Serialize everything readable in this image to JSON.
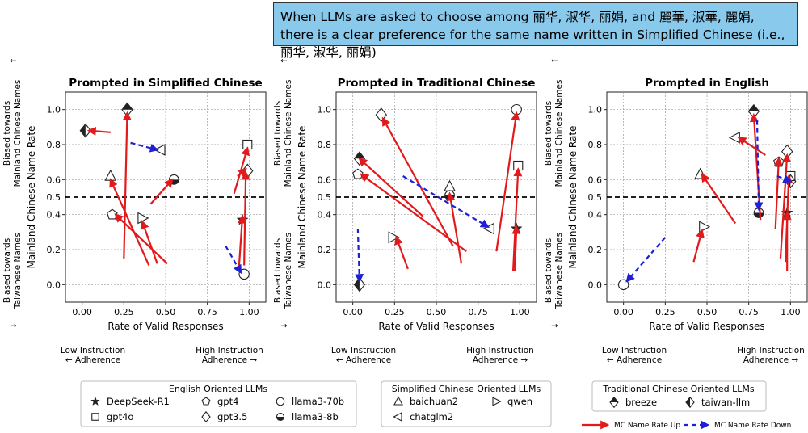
{
  "callout": "When LLMs are asked to choose among 丽华, 淑华, 丽娟, and 麗華, 淑華, 麗娟, there is a clear preference for the same name written in Simplified Chinese (i.e.,丽华, 淑华, 丽娟)",
  "side": {
    "top_arrow": "↑",
    "top_line1": "Biased towards",
    "top_line2": "Mainland Chinese Names",
    "bottom_line1": "Biased towards",
    "bottom_line2": "Taiwanese Names",
    "bottom_arrow": "↓"
  },
  "bottom_note": {
    "low_line1": "Low Instruction",
    "low_line2": "← Adherence",
    "high_line1": "High Instruction",
    "high_line2": "Adherence →"
  },
  "colors": {
    "up": "#e31a1c",
    "down": "#1f1fd6"
  },
  "legends": {
    "english": {
      "title": "English Oriented LLMs",
      "items": [
        {
          "marker": "star",
          "label": "DeepSeek-R1"
        },
        {
          "marker": "pentagon",
          "label": "gpt4"
        },
        {
          "marker": "circle",
          "label": "llama3-70b"
        },
        {
          "marker": "square",
          "label": "gpt4o"
        },
        {
          "marker": "diamond",
          "label": "gpt3.5"
        },
        {
          "marker": "halfcircle",
          "label": "llama3-8b"
        }
      ]
    },
    "simplified": {
      "title": "Simplified Chinese Oriented LLMs",
      "items": [
        {
          "marker": "tri_up",
          "label": "baichuan2"
        },
        {
          "marker": "tri_right",
          "label": "qwen"
        },
        {
          "marker": "tri_left",
          "label": "chatglm2"
        }
      ]
    },
    "traditional": {
      "title": "Traditional Chinese Oriented LLMs",
      "items": [
        {
          "marker": "diamond_half_top",
          "label": "breeze"
        },
        {
          "marker": "diamond_half_left",
          "label": "taiwan-llm"
        }
      ]
    },
    "arrows": [
      {
        "kind": "up",
        "label": "MC Name Rate Up"
      },
      {
        "kind": "down",
        "label": "MC Name Rate Down"
      }
    ]
  },
  "chart_data": [
    {
      "type": "scatter",
      "title": "Prompted in Simplified Chinese",
      "xlabel": "Rate of Valid Responses",
      "ylabel": "Mainland Chinese Name Rate",
      "xlim": [
        -0.1,
        1.1
      ],
      "ylim": [
        -0.1,
        1.1
      ],
      "xticks": [
        "0.00",
        "0.25",
        "0.50",
        "0.75",
        "1.00"
      ],
      "yticks": [
        "0.0",
        "0.2",
        "0.4",
        "0.6",
        "0.8",
        "1.0"
      ],
      "hline": {
        "y": 0.5,
        "label": "0.5"
      },
      "grid": true,
      "points": [
        {
          "model": "taiwan-llm",
          "x": 0.02,
          "y": 0.88
        },
        {
          "model": "breeze",
          "x": 0.27,
          "y": 1.0
        },
        {
          "model": "chatglm2",
          "x": 0.47,
          "y": 0.77
        },
        {
          "model": "baichuan2",
          "x": 0.17,
          "y": 0.62
        },
        {
          "model": "llama3-8b",
          "x": 0.55,
          "y": 0.6
        },
        {
          "model": "gpt4",
          "x": 0.18,
          "y": 0.4
        },
        {
          "model": "qwen",
          "x": 0.36,
          "y": 0.38
        },
        {
          "model": "gpt4o",
          "x": 0.99,
          "y": 0.8
        },
        {
          "model": "gpt3.5",
          "x": 0.99,
          "y": 0.65
        },
        {
          "model": "DeepSeek-R1",
          "x": 0.96,
          "y": 0.37
        },
        {
          "model": "llama3-70b",
          "x": 0.97,
          "y": 0.06
        }
      ],
      "arrows": [
        {
          "kind": "up",
          "from": [
            0.17,
            0.87
          ],
          "to": [
            0.04,
            0.88
          ]
        },
        {
          "kind": "up",
          "from": [
            0.25,
            0.15
          ],
          "to": [
            0.27,
            0.98
          ]
        },
        {
          "kind": "down",
          "from": [
            0.29,
            0.81
          ],
          "to": [
            0.45,
            0.77
          ]
        },
        {
          "kind": "up",
          "from": [
            0.4,
            0.11
          ],
          "to": [
            0.17,
            0.6
          ]
        },
        {
          "kind": "up",
          "from": [
            0.41,
            0.46
          ],
          "to": [
            0.54,
            0.6
          ]
        },
        {
          "kind": "up",
          "from": [
            0.51,
            0.12
          ],
          "to": [
            0.2,
            0.4
          ]
        },
        {
          "kind": "up",
          "from": [
            0.45,
            0.12
          ],
          "to": [
            0.36,
            0.36
          ]
        },
        {
          "kind": "up",
          "from": [
            0.91,
            0.52
          ],
          "to": [
            0.99,
            0.78
          ]
        },
        {
          "kind": "up",
          "from": [
            0.93,
            0.62
          ],
          "to": [
            0.98,
            0.66
          ]
        },
        {
          "kind": "up",
          "from": [
            0.94,
            0.11
          ],
          "to": [
            0.96,
            0.39
          ]
        },
        {
          "kind": "up",
          "from": [
            0.97,
            0.11
          ],
          "to": [
            0.98,
            0.64
          ]
        },
        {
          "kind": "down",
          "from": [
            0.86,
            0.22
          ],
          "to": [
            0.95,
            0.07
          ]
        }
      ]
    },
    {
      "type": "scatter",
      "title": "Prompted in Traditional Chinese",
      "xlabel": "Rate of Valid Responses",
      "ylabel": "Mainland Chinese Name Rate",
      "xlim": [
        -0.1,
        1.1
      ],
      "ylim": [
        -0.1,
        1.1
      ],
      "xticks": [
        "0.00",
        "0.25",
        "0.50",
        "0.75",
        "1.00"
      ],
      "yticks": [
        "0.0",
        "0.2",
        "0.4",
        "0.6",
        "0.8",
        "1.0"
      ],
      "hline": {
        "y": 0.5,
        "label": "0.5"
      },
      "grid": true,
      "points": [
        {
          "model": "gpt3.5",
          "x": 0.17,
          "y": 0.97
        },
        {
          "model": "llama3-70b",
          "x": 0.98,
          "y": 1.0
        },
        {
          "model": "breeze",
          "x": 0.04,
          "y": 0.72
        },
        {
          "model": "gpt4o",
          "x": 0.99,
          "y": 0.68
        },
        {
          "model": "gpt4",
          "x": 0.03,
          "y": 0.63
        },
        {
          "model": "baichuan2",
          "x": 0.58,
          "y": 0.56
        },
        {
          "model": "llama3-8b",
          "x": 0.58,
          "y": 0.51
        },
        {
          "model": "chatglm2",
          "x": 0.82,
          "y": 0.32
        },
        {
          "model": "DeepSeek-R1",
          "x": 0.98,
          "y": 0.32
        },
        {
          "model": "qwen",
          "x": 0.24,
          "y": 0.27
        },
        {
          "model": "taiwan-llm",
          "x": 0.04,
          "y": 0.0
        }
      ],
      "arrows": [
        {
          "kind": "up",
          "from": [
            0.42,
            0.39
          ],
          "to": [
            0.04,
            0.72
          ]
        },
        {
          "kind": "up",
          "from": [
            0.68,
            0.19
          ],
          "to": [
            0.05,
            0.63
          ]
        },
        {
          "kind": "up",
          "from": [
            0.6,
            0.22
          ],
          "to": [
            0.18,
            0.95
          ]
        },
        {
          "kind": "up",
          "from": [
            0.65,
            0.12
          ],
          "to": [
            0.58,
            0.52
          ]
        },
        {
          "kind": "down",
          "from": [
            0.3,
            0.62
          ],
          "to": [
            0.81,
            0.33
          ]
        },
        {
          "kind": "up",
          "from": [
            0.86,
            0.19
          ],
          "to": [
            0.98,
            0.98
          ]
        },
        {
          "kind": "up",
          "from": [
            0.96,
            0.08
          ],
          "to": [
            0.99,
            0.66
          ]
        },
        {
          "kind": "up",
          "from": [
            0.97,
            0.08
          ],
          "to": [
            0.98,
            0.33
          ]
        },
        {
          "kind": "up",
          "from": [
            0.33,
            0.09
          ],
          "to": [
            0.26,
            0.27
          ]
        },
        {
          "kind": "down",
          "from": [
            0.03,
            0.32
          ],
          "to": [
            0.04,
            0.02
          ]
        }
      ]
    },
    {
      "type": "scatter",
      "title": "Prompted in English",
      "xlabel": "Rate of Valid Responses",
      "ylabel": "Mainland Chinese Name Rate",
      "xlim": [
        -0.1,
        1.1
      ],
      "ylim": [
        -0.1,
        1.1
      ],
      "xticks": [
        "0.00",
        "0.25",
        "0.50",
        "0.75",
        "1.00"
      ],
      "yticks": [
        "0.0",
        "0.2",
        "0.4",
        "0.6",
        "0.8",
        "1.0"
      ],
      "hline": {
        "y": 0.5,
        "label": "0.5"
      },
      "grid": true,
      "points": [
        {
          "model": "breeze",
          "x": 0.78,
          "y": 0.99
        },
        {
          "model": "chatglm2",
          "x": 0.67,
          "y": 0.84
        },
        {
          "model": "gpt3.5",
          "x": 0.98,
          "y": 0.76
        },
        {
          "model": "gpt4",
          "x": 0.93,
          "y": 0.7
        },
        {
          "model": "baichuan2",
          "x": 0.46,
          "y": 0.63
        },
        {
          "model": "gpt4o",
          "x": 1.0,
          "y": 0.62
        },
        {
          "model": "taiwan-llm",
          "x": 1.0,
          "y": 0.59
        },
        {
          "model": "llama3-8b",
          "x": 0.81,
          "y": 0.41
        },
        {
          "model": "DeepSeek-R1",
          "x": 0.98,
          "y": 0.41
        },
        {
          "model": "qwen",
          "x": 0.48,
          "y": 0.33
        },
        {
          "model": "llama3-70b",
          "x": 0.0,
          "y": 0.0
        }
      ],
      "arrows": [
        {
          "kind": "up",
          "from": [
            0.67,
            0.35
          ],
          "to": [
            0.47,
            0.63
          ]
        },
        {
          "kind": "up",
          "from": [
            0.85,
            0.74
          ],
          "to": [
            0.69,
            0.84
          ]
        },
        {
          "kind": "up",
          "from": [
            0.82,
            0.37
          ],
          "to": [
            0.78,
            0.97
          ]
        },
        {
          "kind": "down",
          "from": [
            0.8,
            0.94
          ],
          "to": [
            0.81,
            0.43
          ]
        },
        {
          "kind": "up",
          "from": [
            0.91,
            0.32
          ],
          "to": [
            0.93,
            0.72
          ]
        },
        {
          "kind": "up",
          "from": [
            0.94,
            0.15
          ],
          "to": [
            0.98,
            0.74
          ]
        },
        {
          "kind": "up",
          "from": [
            0.97,
            0.13
          ],
          "to": [
            0.99,
            0.62
          ]
        },
        {
          "kind": "down",
          "from": [
            0.92,
            0.62
          ],
          "to": [
            1.0,
            0.59
          ]
        },
        {
          "kind": "up",
          "from": [
            0.98,
            0.08
          ],
          "to": [
            0.98,
            0.41
          ]
        },
        {
          "kind": "up",
          "from": [
            0.42,
            0.13
          ],
          "to": [
            0.47,
            0.31
          ]
        },
        {
          "kind": "down",
          "from": [
            0.25,
            0.27
          ],
          "to": [
            0.02,
            0.02
          ]
        }
      ]
    }
  ]
}
